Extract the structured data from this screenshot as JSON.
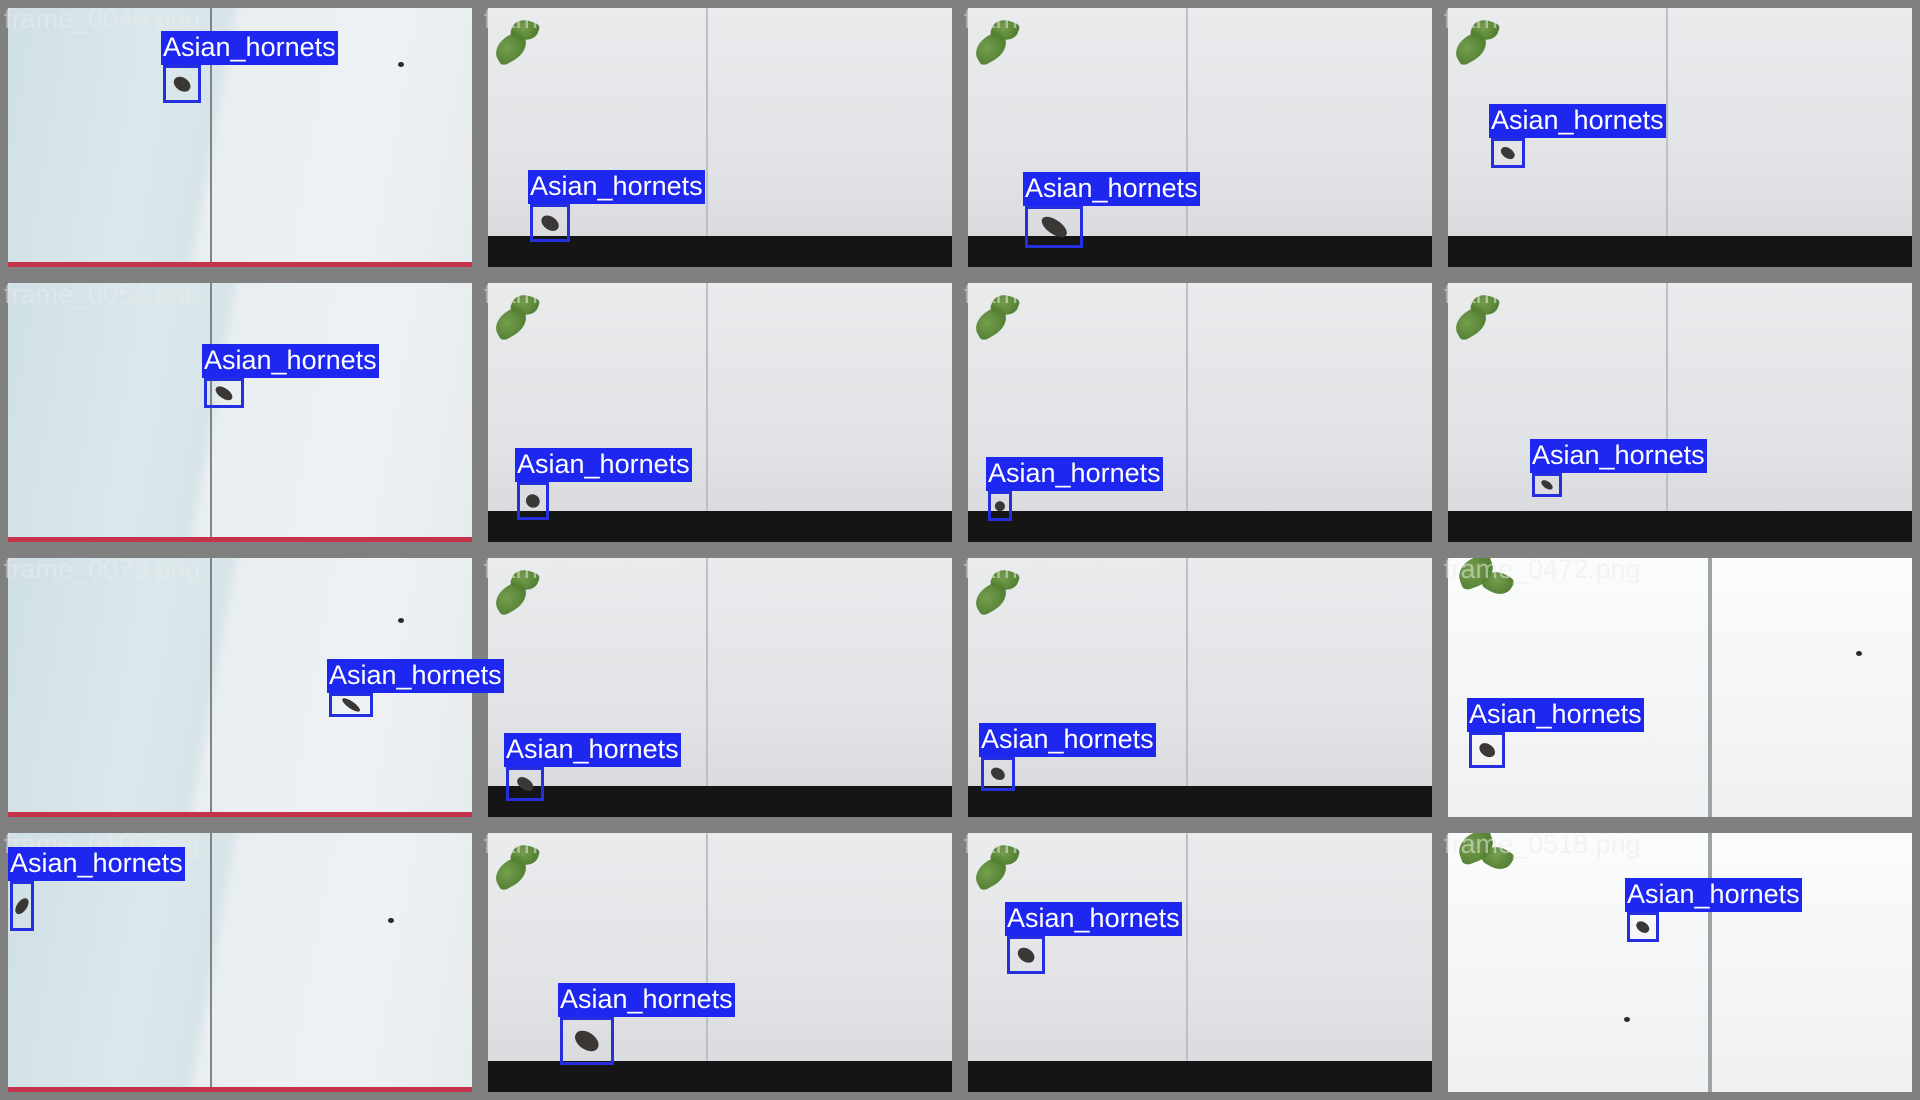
{
  "detection_label": "Asian_hornets",
  "colors": {
    "box": "#2430e0",
    "label_bg": "#1e27f0",
    "label_text": "#ffffff",
    "background": "#808080"
  },
  "tiles": [
    {
      "filename": "frame_0046.png",
      "scene": "a",
      "speck": [
        0.84,
        0.21
      ]
    },
    {
      "filename": "frame_0272.png",
      "scene": "b"
    },
    {
      "filename": "frame_0355.png",
      "scene": "b"
    },
    {
      "filename": "frame_0433.png",
      "scene": "b"
    },
    {
      "filename": "frame_0054.png",
      "scene": "a"
    },
    {
      "filename": "frame_0285.png",
      "scene": "b"
    },
    {
      "filename": "frame_0378.png",
      "scene": "b"
    },
    {
      "filename": "frame_0440.png",
      "scene": "b"
    },
    {
      "filename": "frame_0073.png",
      "scene": "a",
      "speck": [
        0.84,
        0.23
      ]
    },
    {
      "filename": "frame_0307.png",
      "scene": "b"
    },
    {
      "filename": "frame_0399.png",
      "scene": "b"
    },
    {
      "filename": "frame_0472.png",
      "scene": "c",
      "speck": [
        0.88,
        0.36
      ]
    },
    {
      "filename": "frame_0107.png",
      "scene": "a",
      "speck": [
        0.82,
        0.33
      ]
    },
    {
      "filename": "frame_0352.png",
      "scene": "b"
    },
    {
      "filename": "frame_0418.png",
      "scene": "b"
    },
    {
      "filename": "frame_0518.png",
      "scene": "c",
      "speck": [
        0.38,
        0.71
      ]
    }
  ]
}
